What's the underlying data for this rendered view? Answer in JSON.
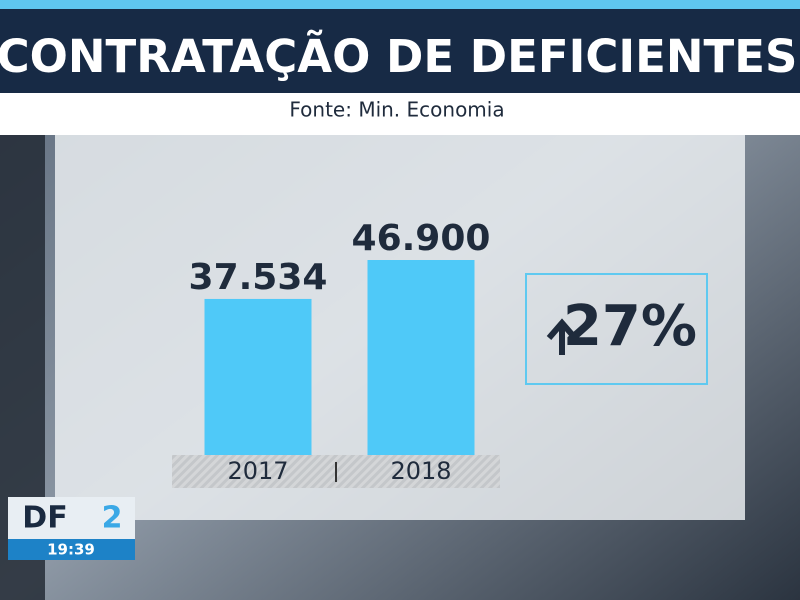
{
  "chart_data": {
    "type": "bar",
    "title": "CONTRATAÇÃO DE DEFICIENTES",
    "subtitle": "Fonte: Min. Economia",
    "categories": [
      "2017",
      "2018"
    ],
    "values": [
      37534,
      46900
    ],
    "value_labels": [
      "37.534",
      "46.900"
    ],
    "color": "#4fc9f8",
    "annotation": "27%"
  },
  "logo": {
    "channel": "DF",
    "number": "2",
    "time": "19:39"
  }
}
